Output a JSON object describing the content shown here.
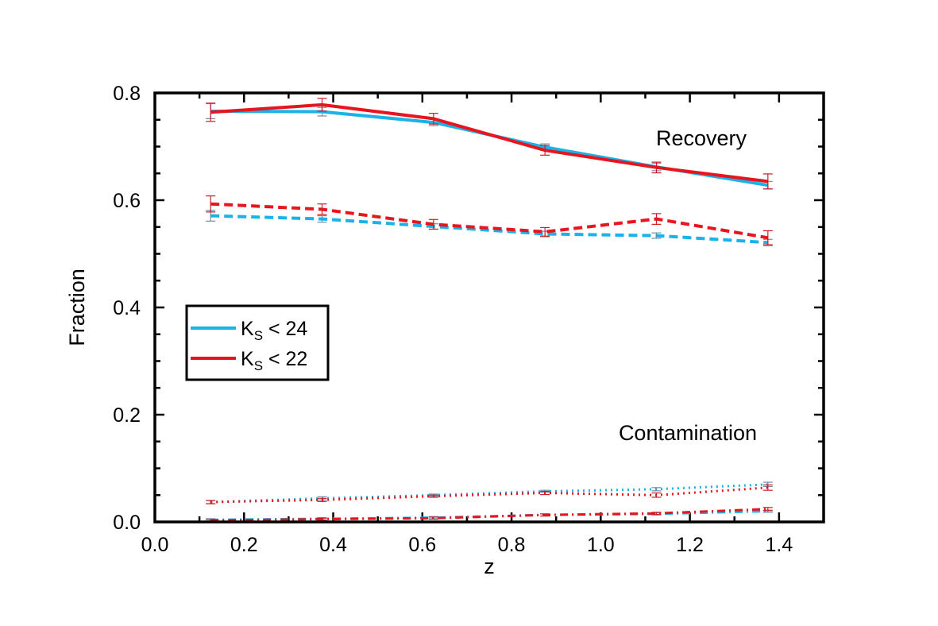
{
  "chart_data": {
    "type": "line",
    "title": "",
    "xlabel": "z",
    "ylabel": "Fraction",
    "xlim": [
      0.0,
      1.5
    ],
    "ylim": [
      0.0,
      0.8
    ],
    "xticks": [
      "0.0",
      "0.2",
      "0.4",
      "0.6",
      "0.8",
      "1.0",
      "1.2",
      "1.4"
    ],
    "yticks": [
      "0.0",
      "0.2",
      "0.4",
      "0.6",
      "0.8"
    ],
    "x": [
      0.125,
      0.375,
      0.625,
      0.875,
      1.125,
      1.375
    ],
    "annotations": [
      "Recovery",
      "Contamination"
    ],
    "legend": {
      "position": "center-left",
      "entries": [
        {
          "label_main": "K",
          "label_sub": "S",
          "label_rest": " < 24",
          "color": "#1ab2e8"
        },
        {
          "label_main": "K",
          "label_sub": "S",
          "label_rest": " < 22",
          "color": "#e8141e"
        }
      ]
    },
    "colors": {
      "blue": "#1ab2e8",
      "red": "#e8141e",
      "errorbar_blue": "#6c8fa8",
      "errorbar_red": "#cc1e26"
    },
    "series": [
      {
        "name": "Recovery Ks<24",
        "color": "blue",
        "style": "solid",
        "values": [
          0.766,
          0.765,
          0.745,
          0.699,
          0.662,
          0.628
        ],
        "errors": [
          0.014,
          0.008,
          0.006,
          0.006,
          0.007,
          0.007
        ]
      },
      {
        "name": "Recovery Ks<22",
        "color": "red",
        "style": "solid",
        "values": [
          0.764,
          0.778,
          0.752,
          0.693,
          0.661,
          0.635
        ],
        "errors": [
          0.017,
          0.012,
          0.01,
          0.009,
          0.01,
          0.014
        ]
      },
      {
        "name": "Recovery2 Ks<24",
        "color": "blue",
        "style": "dashed",
        "values": [
          0.571,
          0.565,
          0.551,
          0.537,
          0.534,
          0.521
        ],
        "errors": [
          0.01,
          0.006,
          0.005,
          0.005,
          0.005,
          0.006
        ]
      },
      {
        "name": "Recovery2 Ks<22",
        "color": "red",
        "style": "dashed",
        "values": [
          0.593,
          0.583,
          0.555,
          0.541,
          0.565,
          0.53
        ],
        "errors": [
          0.015,
          0.01,
          0.009,
          0.008,
          0.01,
          0.013
        ]
      },
      {
        "name": "Contamination Ks<24",
        "color": "blue",
        "style": "dotted",
        "values": [
          0.037,
          0.044,
          0.05,
          0.057,
          0.061,
          0.07
        ],
        "errors": [
          0.003,
          0.003,
          0.002,
          0.002,
          0.003,
          0.004
        ]
      },
      {
        "name": "Contamination Ks<22",
        "color": "red",
        "style": "dotted",
        "values": [
          0.037,
          0.041,
          0.048,
          0.054,
          0.05,
          0.064
        ],
        "errors": [
          0.003,
          0.003,
          0.002,
          0.003,
          0.004,
          0.005
        ]
      },
      {
        "name": "Contamination2 Ks<24",
        "color": "blue",
        "style": "dashdot",
        "values": [
          0.004,
          0.006,
          0.008,
          0.013,
          0.015,
          0.02
        ],
        "errors": [
          0.002,
          0.002,
          0.002,
          0.002,
          0.002,
          0.002
        ]
      },
      {
        "name": "Contamination2 Ks<22",
        "color": "red",
        "style": "dashdot",
        "values": [
          0.003,
          0.005,
          0.007,
          0.013,
          0.016,
          0.024
        ],
        "errors": [
          0.002,
          0.002,
          0.002,
          0.002,
          0.002,
          0.003
        ]
      }
    ]
  }
}
